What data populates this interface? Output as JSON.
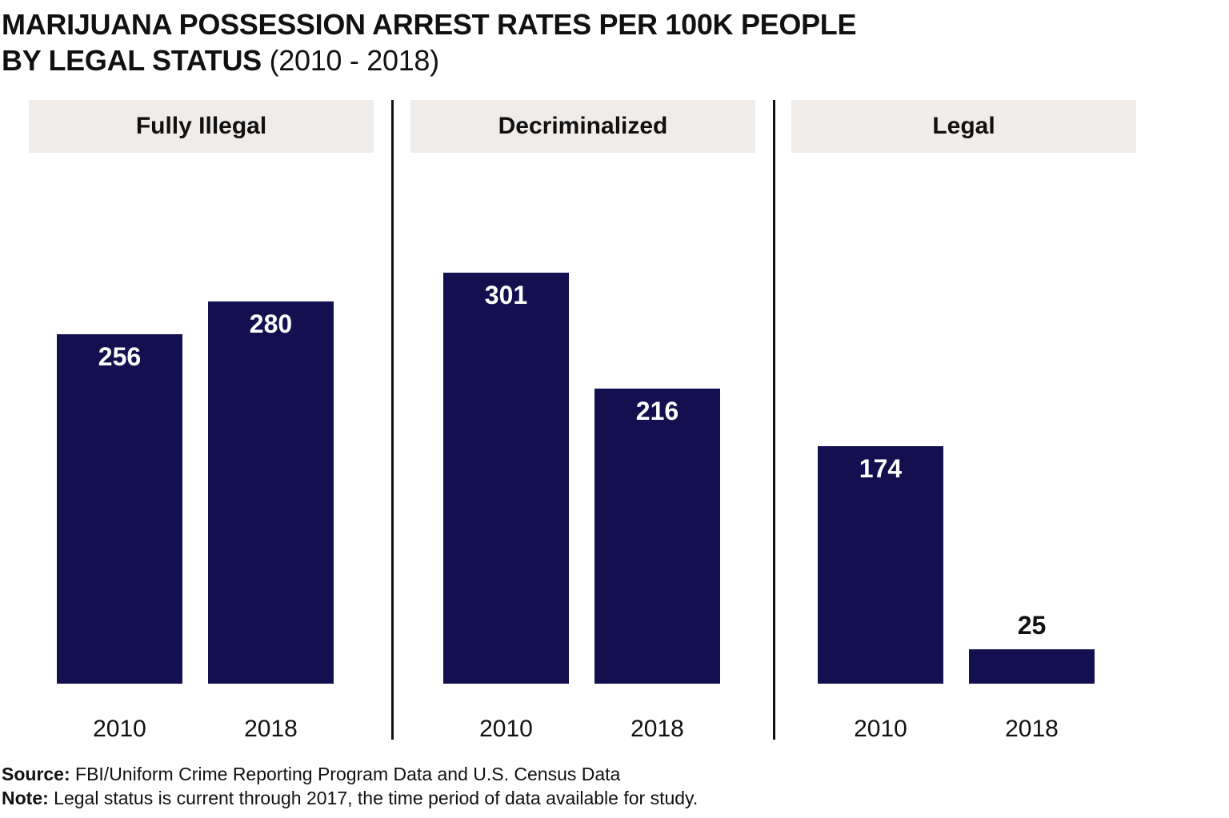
{
  "title": {
    "line1": "MARIJUANA POSSESSION ARREST RATES PER 100K PEOPLE",
    "line2_bold": "BY LEGAL STATUS",
    "line2_normal": "(2010 - 2018)"
  },
  "chart_data": {
    "type": "bar",
    "title": "MARIJUANA POSSESSION ARREST RATES PER 100K PEOPLE BY LEGAL STATUS (2010 - 2018)",
    "categories": [
      "2010",
      "2018"
    ],
    "panels": [
      {
        "name": "Fully Illegal",
        "values": [
          256,
          280
        ]
      },
      {
        "name": "Decriminalized",
        "values": [
          301,
          216
        ]
      },
      {
        "name": "Legal",
        "values": [
          174,
          25
        ]
      }
    ],
    "ylim": [
      0,
      310
    ],
    "grid": false,
    "bar_color": "#141050",
    "header_color": "#efecea"
  },
  "footer": {
    "source_label": "Source:",
    "source_text": "FBI/Uniform Crime Reporting Program Data and U.S. Census Data",
    "note_label": "Note:",
    "note_text": "Legal status is current through 2017, the time period of data available for study."
  }
}
